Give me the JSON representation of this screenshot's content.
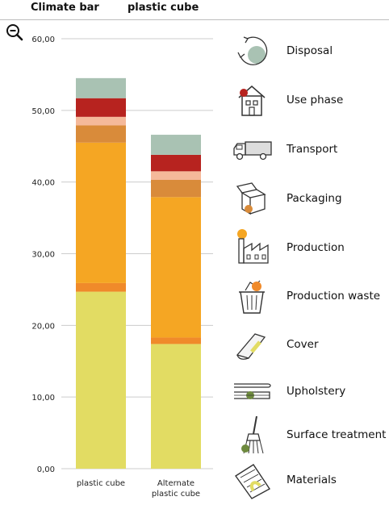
{
  "header": {
    "title": "Climate bar",
    "product": "plastic cube"
  },
  "toolbar": {
    "zoom_icon": "zoom-out-icon"
  },
  "colors": {
    "materials": "#e2dc63",
    "surface_treatment": "#f08a2a",
    "upholstery": "#f5a623",
    "cover": "#d98b3a",
    "production_waste": "#f5b99a",
    "production": "#b7231f",
    "disposal": "#a9c2b3",
    "axis_line": "#cccccc"
  },
  "legend": {
    "items": [
      {
        "label": "Disposal",
        "icon": "disposal-icon",
        "color": "#a9c2b3"
      },
      {
        "label": "Use phase",
        "icon": "use-phase-icon",
        "color": "#b7231f"
      },
      {
        "label": "Transport",
        "icon": "transport-icon",
        "color": "#cccccc"
      },
      {
        "label": "Packaging",
        "icon": "packaging-icon",
        "color": "#d98b3a"
      },
      {
        "label": "Production",
        "icon": "production-icon",
        "color": "#f5a623"
      },
      {
        "label": "Production waste",
        "icon": "production-waste-icon",
        "color": "#f08a2a"
      },
      {
        "label": "Cover",
        "icon": "cover-icon",
        "color": "#e2dc63"
      },
      {
        "label": "Upholstery",
        "icon": "upholstery-icon",
        "color": "#6e8a3e"
      },
      {
        "label": "Surface treatment",
        "icon": "surface-treatment-icon",
        "color": "#6e8a3e"
      },
      {
        "label": "Materials",
        "icon": "materials-icon",
        "color": "#e2dc63"
      }
    ]
  },
  "chart_data": {
    "type": "bar",
    "stacked": true,
    "categories": [
      "plastic cube",
      "Alternate plastic cube"
    ],
    "ylim": [
      0,
      60
    ],
    "yticks": [
      "0,00",
      "10,00",
      "20,00",
      "30,00",
      "40,00",
      "50,00",
      "60,00"
    ],
    "grid": "horizontal",
    "series": [
      {
        "color": "#e2dc63",
        "values": [
          24.7,
          17.4
        ]
      },
      {
        "color": "#f08a2a",
        "values": [
          1.2,
          0.9
        ]
      },
      {
        "color": "#f5a623",
        "values": [
          19.6,
          19.6
        ]
      },
      {
        "color": "#d98b3a",
        "values": [
          2.4,
          2.4
        ]
      },
      {
        "color": "#f5b99a",
        "values": [
          1.2,
          1.2
        ]
      },
      {
        "color": "#b7231f",
        "values": [
          2.6,
          2.3
        ]
      },
      {
        "color": "#a9c2b3",
        "values": [
          2.8,
          2.8
        ]
      }
    ]
  }
}
